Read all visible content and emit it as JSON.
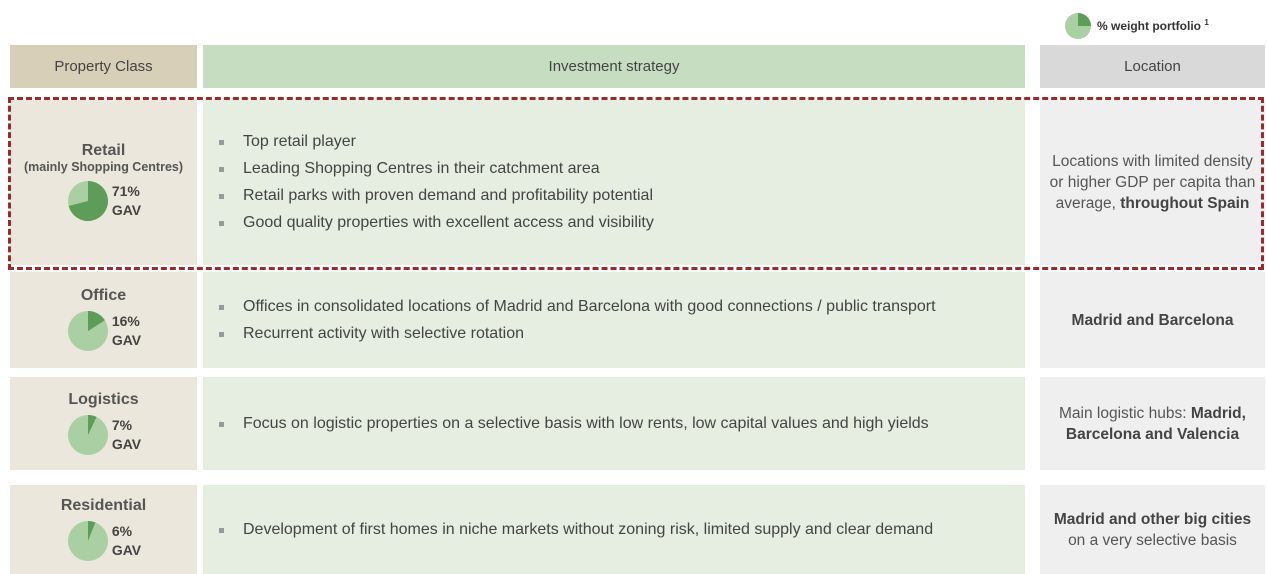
{
  "legend": {
    "label": "% weight portfolio",
    "note": "1"
  },
  "header": {
    "property_class": "Property Class",
    "investment_strategy": "Investment strategy",
    "location": "Location"
  },
  "rows": [
    {
      "name": "Retail",
      "subtitle": "(mainly Shopping Centres)",
      "weight": {
        "value": 71,
        "label": "71%"
      },
      "unit": "GAV",
      "strategy": [
        "Top retail player",
        "Leading Shopping Centres in their catchment area",
        "Retail parks with proven demand and profitability potential",
        "Good quality properties with excellent access and visibility"
      ],
      "location": [
        {
          "text": "Locations with limited density or higher GDP per capita than average,",
          "bold": false
        },
        {
          "text": "throughout Spain",
          "bold": true
        }
      ]
    },
    {
      "name": "Office",
      "weight": {
        "value": 16,
        "label": "16%"
      },
      "unit": "GAV",
      "strategy": [
        "Offices in consolidated locations of Madrid and Barcelona with good connections / public transport",
        "Recurrent activity with selective rotation"
      ],
      "location": [
        {
          "text": "Madrid and Barcelona",
          "bold": true
        }
      ]
    },
    {
      "name": "Logistics",
      "weight": {
        "value": 7,
        "label": "7%"
      },
      "unit": "GAV",
      "strategy": [
        "Focus on logistic properties on a selective basis with low rents, low capital values and high yields"
      ],
      "location": [
        {
          "text": "Main logistic hubs:",
          "bold": false
        },
        {
          "text": "Madrid, Barcelona and Valencia",
          "bold": true
        }
      ]
    },
    {
      "name": "Residential",
      "weight": {
        "value": 6,
        "label": "6%"
      },
      "unit": "GAV",
      "strategy": [
        "Development of first homes in niche markets without zoning risk, limited supply and clear demand"
      ],
      "location": [
        {
          "text": "Madrid and other big cities",
          "bold": true
        },
        {
          "text": "on a very selective basis",
          "bold": false
        }
      ]
    }
  ]
}
